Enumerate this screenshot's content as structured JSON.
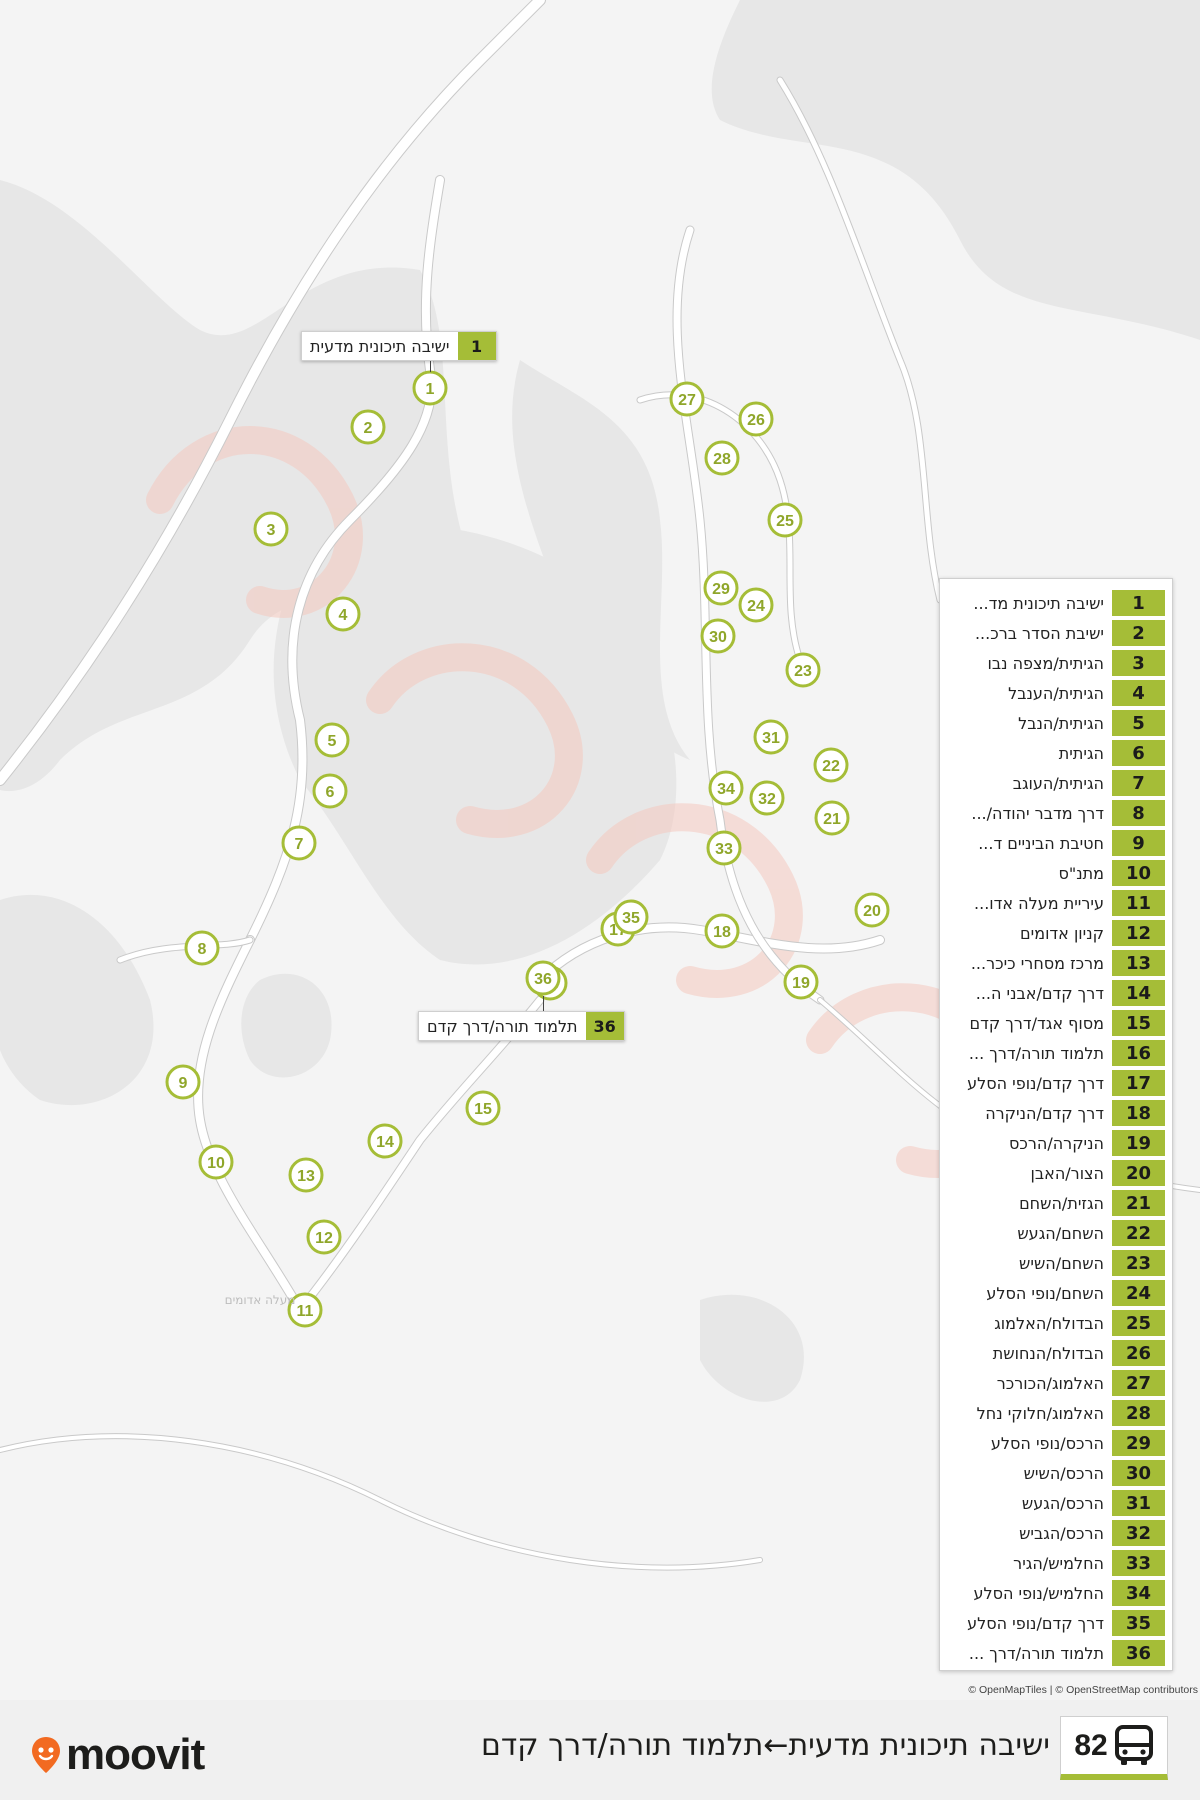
{
  "map": {
    "colors": {
      "background": "#f4f4f4",
      "terrain": "#e6e6e6",
      "road": "#ffffff",
      "road_outline": "#c9c9c9",
      "stop_ring": "#a5bd37",
      "stop_text": "#8fa62a",
      "watermark": "#f2c7bd"
    },
    "stops": [
      {
        "n": "1"
      },
      {
        "n": "2"
      },
      {
        "n": "3"
      },
      {
        "n": "4"
      },
      {
        "n": "5"
      },
      {
        "n": "6"
      },
      {
        "n": "7"
      },
      {
        "n": "8"
      },
      {
        "n": "9"
      },
      {
        "n": "10"
      },
      {
        "n": "11"
      },
      {
        "n": "12"
      },
      {
        "n": "13"
      },
      {
        "n": "14"
      },
      {
        "n": "15"
      },
      {
        "n": "16"
      },
      {
        "n": "17"
      },
      {
        "n": "18"
      },
      {
        "n": "19"
      },
      {
        "n": "20"
      },
      {
        "n": "21"
      },
      {
        "n": "22"
      },
      {
        "n": "23"
      },
      {
        "n": "24"
      },
      {
        "n": "25"
      },
      {
        "n": "26"
      },
      {
        "n": "27"
      },
      {
        "n": "28"
      },
      {
        "n": "29"
      },
      {
        "n": "30"
      },
      {
        "n": "31"
      },
      {
        "n": "32"
      },
      {
        "n": "33"
      },
      {
        "n": "34"
      },
      {
        "n": "35"
      },
      {
        "n": "36"
      }
    ],
    "start_label": {
      "num": "1",
      "name": "ישיבה תיכונית מדעית"
    },
    "end_label": {
      "num": "36",
      "name": "תלמוד תורה/דרך קדם"
    },
    "place_label": "מעלה אדומים"
  },
  "legend": [
    {
      "num": "1",
      "name": "ישיבה תיכונית מד..."
    },
    {
      "num": "2",
      "name": "ישיבת הסדר ברכ..."
    },
    {
      "num": "3",
      "name": "הגיתית/מצפה נבו"
    },
    {
      "num": "4",
      "name": "הגיתית/הענבל"
    },
    {
      "num": "5",
      "name": "הגיתית/הנבל"
    },
    {
      "num": "6",
      "name": "הגיתית"
    },
    {
      "num": "7",
      "name": "הגיתית/העוגב"
    },
    {
      "num": "8",
      "name": "דרך מדבר יהודה/..."
    },
    {
      "num": "9",
      "name": "חטיבת הביניים ד..."
    },
    {
      "num": "10",
      "name": "מתנ\"ס"
    },
    {
      "num": "11",
      "name": "עיריית מעלה אדו..."
    },
    {
      "num": "12",
      "name": "קניון אדומים"
    },
    {
      "num": "13",
      "name": "מרכז מסחרי כיכר..."
    },
    {
      "num": "14",
      "name": "דרך קדם/אבני ה..."
    },
    {
      "num": "15",
      "name": "מסוף אגד/דרך קדם"
    },
    {
      "num": "16",
      "name": "תלמוד תורה/דרך ..."
    },
    {
      "num": "17",
      "name": "דרך קדם/נופי הסלע"
    },
    {
      "num": "18",
      "name": "דרך קדם/הניקרה"
    },
    {
      "num": "19",
      "name": "הניקרה/הרכס"
    },
    {
      "num": "20",
      "name": "הצור/האבן"
    },
    {
      "num": "21",
      "name": "הגזית/השחם"
    },
    {
      "num": "22",
      "name": "השחם/הגעש"
    },
    {
      "num": "23",
      "name": "השחם/השיש"
    },
    {
      "num": "24",
      "name": "השחם/נופי הסלע"
    },
    {
      "num": "25",
      "name": "הבדולח/האלמוג"
    },
    {
      "num": "26",
      "name": "הבדולח/הנחושת"
    },
    {
      "num": "27",
      "name": "האלמוג/הכורכר"
    },
    {
      "num": "28",
      "name": "האלמוג/חלוקי נחל"
    },
    {
      "num": "29",
      "name": "הרכס/נופי הסלע"
    },
    {
      "num": "30",
      "name": "הרכס/השיש"
    },
    {
      "num": "31",
      "name": "הרכס/הגעש"
    },
    {
      "num": "32",
      "name": "הרכס/הגביש"
    },
    {
      "num": "33",
      "name": "החלמיש/הגיר"
    },
    {
      "num": "34",
      "name": "החלמיש/נופי הסלע"
    },
    {
      "num": "35",
      "name": "דרך קדם/נופי הסלע"
    },
    {
      "num": "36",
      "name": "תלמוד תורה/דרך ..."
    }
  ],
  "attribution": "© OpenMapTiles | © OpenStreetMap contributors",
  "footer": {
    "brand": "moovit",
    "route_number": "82",
    "route_title": "ישיבה תיכונית מדעית←תלמוד תורה/דרך קדם",
    "bus_icon": "bus-icon",
    "logo_icon": "location-pin-icon"
  }
}
